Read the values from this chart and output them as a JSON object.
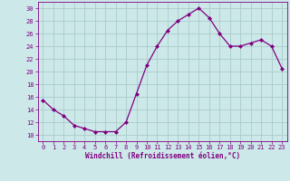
{
  "x": [
    0,
    1,
    2,
    3,
    4,
    5,
    6,
    7,
    8,
    9,
    10,
    11,
    12,
    13,
    14,
    15,
    16,
    17,
    18,
    19,
    20,
    21,
    22,
    23
  ],
  "y": [
    15.5,
    14,
    13,
    11.5,
    11,
    10.5,
    10.5,
    10.5,
    12,
    16.5,
    21,
    24,
    26.5,
    28,
    29,
    30,
    28.5,
    26,
    24,
    24,
    24.5,
    25,
    24,
    20.5
  ],
  "line_color": "#800080",
  "marker": "D",
  "marker_size": 2.0,
  "bg_color": "#cce8e8",
  "grid_color": "#aacccc",
  "xlabel": "Windchill (Refroidissement éolien,°C)",
  "xlabel_color": "#800080",
  "tick_color": "#800080",
  "spine_color": "#800080",
  "xlim": [
    -0.5,
    23.5
  ],
  "ylim": [
    9,
    31
  ],
  "yticks": [
    10,
    12,
    14,
    16,
    18,
    20,
    22,
    24,
    26,
    28,
    30
  ],
  "xticks": [
    0,
    1,
    2,
    3,
    4,
    5,
    6,
    7,
    8,
    9,
    10,
    11,
    12,
    13,
    14,
    15,
    16,
    17,
    18,
    19,
    20,
    21,
    22,
    23
  ],
  "tick_fontsize": 5.0,
  "xlabel_fontsize": 5.5
}
